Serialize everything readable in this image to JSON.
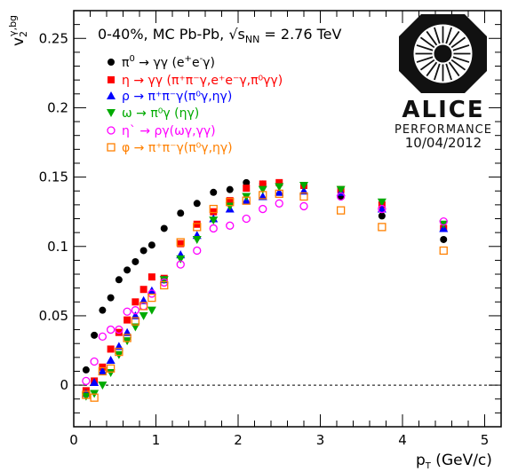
{
  "chart_data": {
    "type": "scatter",
    "xlabel": "p_T (GeV/c)",
    "xlabel_main": "p",
    "xlabel_sub": "T",
    "xlabel_unit": " (GeV/c)",
    "ylabel": "v_2^{γ,bg}",
    "ylabel_main": "v",
    "ylabel_sub": "2",
    "ylabel_sup": "γ,bg",
    "xlim": [
      0,
      5.2
    ],
    "ylim": [
      -0.03,
      0.27
    ],
    "x_ticks": [
      "0",
      "1",
      "2",
      "3",
      "4",
      "5"
    ],
    "y_ticks": [
      "0",
      "0.05",
      "0.1",
      "0.15",
      "0.2",
      "0.25"
    ],
    "annotation": "0-40%, MC Pb-Pb, √s_NN = 2.76 TeV",
    "annotation_parts": {
      "pre": "0-40%, MC Pb-Pb, ",
      "root": "√",
      "s": "s",
      "sub": "NN",
      "post": " = 2.76 TeV"
    },
    "logo": {
      "name": "ALICE",
      "sub": "PERFORMANCE",
      "date": "10/04/2012"
    },
    "series": [
      {
        "name": "π⁰ → γγ (e⁺e⁻γ)",
        "color": "#000000",
        "marker": "circle-filled",
        "x": [
          0.15,
          0.25,
          0.35,
          0.45,
          0.55,
          0.65,
          0.75,
          0.85,
          0.95,
          1.1,
          1.3,
          1.5,
          1.7,
          1.9,
          2.1,
          2.3,
          2.5,
          2.8,
          3.25,
          3.75,
          4.5
        ],
        "y": [
          0.011,
          0.036,
          0.054,
          0.063,
          0.076,
          0.083,
          0.089,
          0.097,
          0.101,
          0.113,
          0.124,
          0.131,
          0.139,
          0.141,
          0.146,
          0.145,
          0.145,
          0.144,
          0.136,
          0.122,
          0.105
        ]
      },
      {
        "name": "η → γγ (π⁺π⁻γ,e⁺e⁻γ,π⁰γγ)",
        "color": "#ff0000",
        "marker": "square-filled",
        "x": [
          0.15,
          0.25,
          0.35,
          0.45,
          0.55,
          0.65,
          0.75,
          0.85,
          0.95,
          1.1,
          1.3,
          1.5,
          1.7,
          1.9,
          2.1,
          2.3,
          2.5,
          2.8,
          3.25,
          3.75,
          4.5
        ],
        "y": [
          -0.004,
          0.003,
          0.013,
          0.026,
          0.038,
          0.047,
          0.06,
          0.069,
          0.078,
          0.077,
          0.102,
          0.116,
          0.125,
          0.133,
          0.142,
          0.145,
          0.146,
          0.144,
          0.141,
          0.13,
          0.113
        ]
      },
      {
        "name": "ρ → π⁺π⁻γ(π⁰γ,ηγ)",
        "color": "#0000ff",
        "marker": "triangle-up",
        "x": [
          0.15,
          0.25,
          0.35,
          0.45,
          0.55,
          0.65,
          0.75,
          0.85,
          0.95,
          1.1,
          1.3,
          1.5,
          1.7,
          1.9,
          2.1,
          2.3,
          2.5,
          2.8,
          3.25,
          3.75,
          4.5
        ],
        "y": [
          -0.006,
          0.002,
          0.01,
          0.018,
          0.028,
          0.038,
          0.05,
          0.061,
          0.068,
          0.076,
          0.094,
          0.108,
          0.12,
          0.127,
          0.133,
          0.136,
          0.139,
          0.14,
          0.139,
          0.127,
          0.113
        ]
      },
      {
        "name": "ω → π⁰γ (ηγ)",
        "color": "#00aa00",
        "marker": "triangle-down",
        "x": [
          0.15,
          0.25,
          0.35,
          0.45,
          0.55,
          0.65,
          0.75,
          0.85,
          0.95,
          1.1,
          1.3,
          1.5,
          1.7,
          1.9,
          2.1,
          2.3,
          2.5,
          2.8,
          3.25,
          3.75,
          4.5
        ],
        "y": [
          -0.008,
          -0.006,
          0.0,
          0.009,
          0.022,
          0.032,
          0.042,
          0.05,
          0.054,
          0.076,
          0.091,
          0.105,
          0.119,
          0.129,
          0.136,
          0.141,
          0.143,
          0.144,
          0.141,
          0.132,
          0.116
        ]
      },
      {
        "name": "η` → ργ(ωγ,γγ)",
        "color": "#ff00ff",
        "marker": "circle-open",
        "x": [
          0.15,
          0.25,
          0.35,
          0.45,
          0.55,
          0.65,
          0.75,
          0.85,
          0.95,
          1.1,
          1.3,
          1.5,
          1.7,
          1.9,
          2.1,
          2.3,
          2.5,
          2.8,
          3.25,
          3.75,
          4.5
        ],
        "y": [
          0.003,
          0.017,
          0.035,
          0.04,
          0.04,
          0.053,
          0.054,
          0.057,
          0.066,
          0.074,
          0.087,
          0.097,
          0.113,
          0.115,
          0.12,
          0.127,
          0.131,
          0.129,
          0.136,
          0.127,
          0.118
        ]
      },
      {
        "name": "φ → π⁺π⁻γ(π⁰γ,ηγ)",
        "color": "#ff8000",
        "marker": "square-open",
        "x": [
          0.15,
          0.25,
          0.35,
          0.45,
          0.55,
          0.65,
          0.75,
          0.85,
          0.95,
          1.1,
          1.3,
          1.5,
          1.7,
          1.9,
          2.1,
          2.3,
          2.5,
          2.8,
          3.25,
          3.75,
          4.5
        ],
        "y": [
          -0.007,
          -0.009,
          0.01,
          0.012,
          0.024,
          0.034,
          0.046,
          0.057,
          0.063,
          0.072,
          0.103,
          0.114,
          0.127,
          0.132,
          0.133,
          0.137,
          0.138,
          0.136,
          0.126,
          0.114,
          0.097
        ]
      }
    ]
  },
  "legend": [
    {
      "main": "π",
      "sup1": "0",
      "rest": " → γγ (e",
      "sup2": "+",
      "rest2": "e",
      "sup3": "-",
      "rest3": "γ)"
    },
    {
      "text": "η → γγ (π⁺π⁻γ,e⁺e⁻γ,π⁰γγ)"
    },
    {
      "text": "ρ → π⁺π⁻γ(π⁰γ,ηγ)"
    },
    {
      "text": "ω → π⁰γ (ηγ)"
    },
    {
      "text": "η` → ργ(ωγ,γγ)"
    },
    {
      "text": "φ → π⁺π⁻γ(π⁰γ,ηγ)"
    }
  ]
}
